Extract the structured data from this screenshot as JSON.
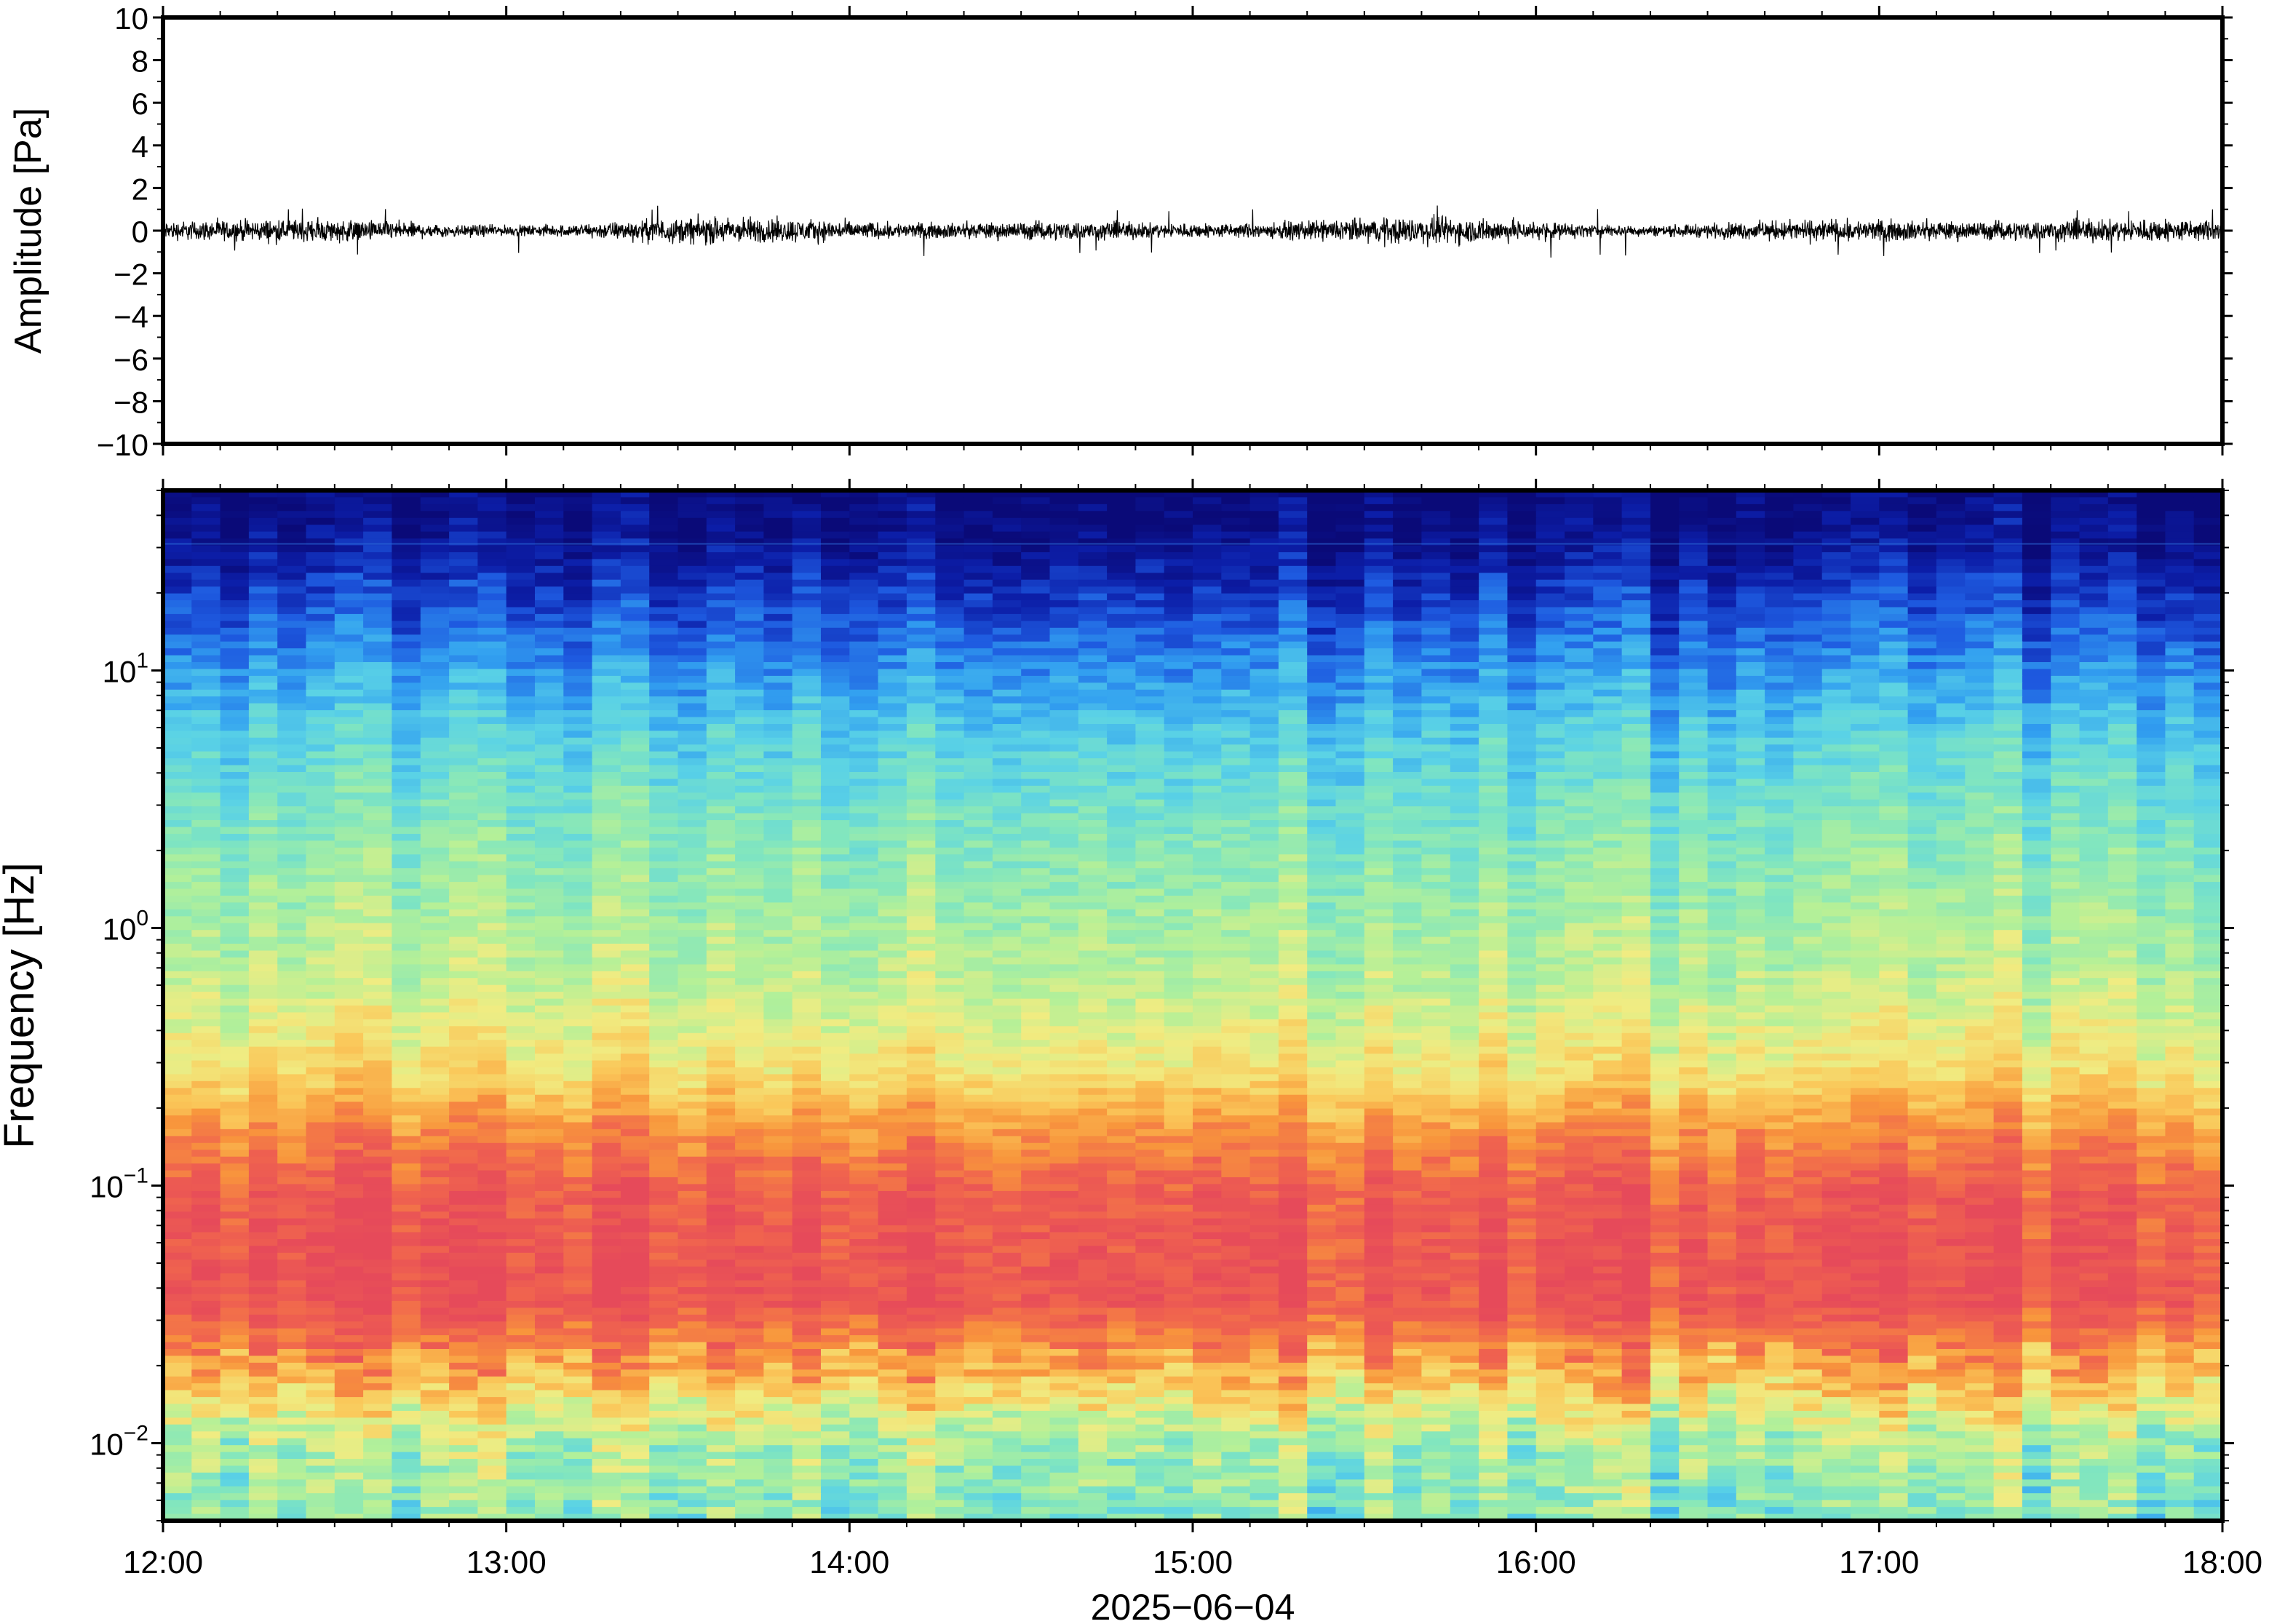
{
  "chart_data": [
    {
      "type": "line",
      "title": "",
      "ylabel": "Amplitude [Pa]",
      "ylim": [
        -10,
        10
      ],
      "yticks": [
        "10",
        "8",
        "6",
        "4",
        "2",
        "0",
        "−2",
        "−4",
        "−6",
        "−8",
        "−10"
      ],
      "ytick_values": [
        10,
        8,
        6,
        4,
        2,
        0,
        -2,
        -4,
        -6,
        -8,
        -10
      ],
      "xlim": [
        "2025-06-04 12:00",
        "2025-06-04 18:00"
      ],
      "series": [
        {
          "noise_amplitude_pa": 0.35,
          "peak_amplitude_pa": 1.3
        }
      ],
      "grid": false
    },
    {
      "type": "heatmap",
      "title": "",
      "ylabel": "Frequency [Hz]",
      "yscale": "log",
      "ylim": [
        0.005,
        50
      ],
      "yticks": [
        {
          "base": "10",
          "exp": "1",
          "value": 10
        },
        {
          "base": "10",
          "exp": "0",
          "value": 1
        },
        {
          "base": "10",
          "exp": "−1",
          "value": 0.1
        },
        {
          "base": "10",
          "exp": "−2",
          "value": 0.01
        }
      ],
      "xlabel": "2025−06−04",
      "xlim": [
        "2025-06-04 12:00",
        "2025-06-04 18:00"
      ],
      "xticks": [
        "12:00",
        "13:00",
        "14:00",
        "15:00",
        "16:00",
        "17:00",
        "18:00"
      ],
      "colormap": "jet",
      "colors": [
        "#0a0a78",
        "#0c1ea8",
        "#1e5ae0",
        "#32a0f0",
        "#5ad2e6",
        "#82e6be",
        "#b4f098",
        "#f0ec82",
        "#fac85a",
        "#f8963c",
        "#f0644e",
        "#e64a5a"
      ],
      "grid": false
    }
  ]
}
